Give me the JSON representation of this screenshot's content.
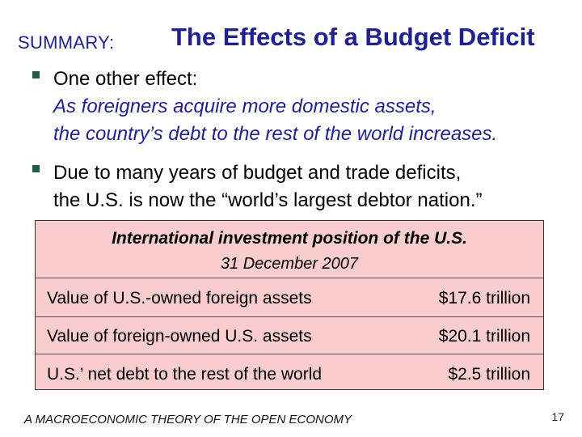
{
  "title": {
    "lead": "SUMMARY:",
    "main": "The Effects of a Budget Deficit"
  },
  "bullets": [
    {
      "line1": "One other effect:",
      "line2": "As foreigners acquire more domestic assets,",
      "line3": "the country’s debt to the rest of the world increases."
    },
    {
      "line1": "Due to many years of budget and trade deficits,",
      "line2": "the U.S. is now the “world’s largest debtor nation.”"
    }
  ],
  "table": {
    "title": "International investment position of the U.S.",
    "subtitle": "31 December 2007",
    "rows": [
      {
        "label": "Value of U.S.-owned foreign assets",
        "value": "$17.6 trillion"
      },
      {
        "label": "Value of foreign-owned U.S. assets",
        "value": "$20.1 trillion"
      },
      {
        "label": "U.S.’ net debt to the rest of the world",
        "value": "$2.5 trillion"
      }
    ]
  },
  "footer": {
    "text": "A MACROECONOMIC THEORY OF THE OPEN ECONOMY",
    "page": "17"
  },
  "colors": {
    "title": "#1f1f8f",
    "table_bg": "#f9cdcd",
    "bullet": "#1f5f3f"
  }
}
